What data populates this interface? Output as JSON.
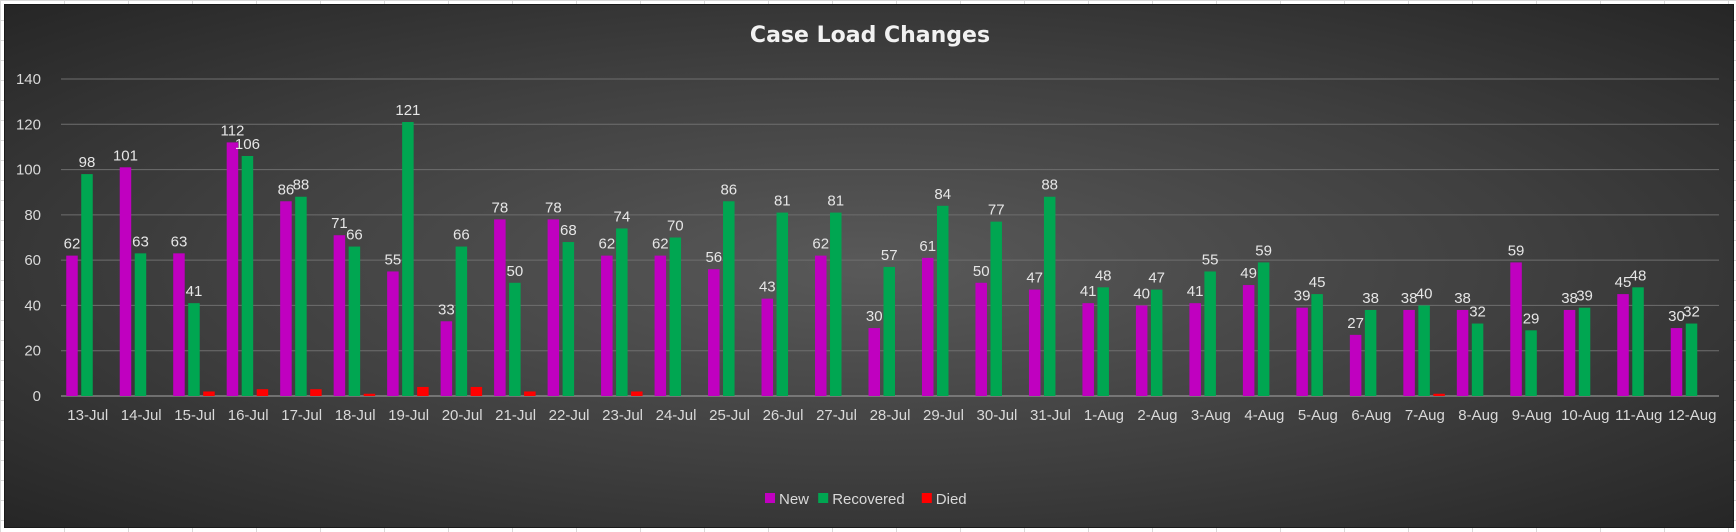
{
  "chart_data": {
    "type": "bar",
    "title": "Case Load Changes",
    "xlabel": "",
    "ylabel": "",
    "ylim": [
      0,
      140
    ],
    "yticks": [
      0,
      20,
      40,
      60,
      80,
      100,
      120,
      140
    ],
    "grid": true,
    "legend_position": "bottom",
    "categories": [
      "13-Jul",
      "14-Jul",
      "15-Jul",
      "16-Jul",
      "17-Jul",
      "18-Jul",
      "19-Jul",
      "20-Jul",
      "21-Jul",
      "22-Jul",
      "23-Jul",
      "24-Jul",
      "25-Jul",
      "26-Jul",
      "27-Jul",
      "28-Jul",
      "29-Jul",
      "30-Jul",
      "31-Jul",
      "1-Aug",
      "2-Aug",
      "3-Aug",
      "4-Aug",
      "5-Aug",
      "6-Aug",
      "7-Aug",
      "8-Aug",
      "9-Aug",
      "10-Aug",
      "11-Aug",
      "12-Aug"
    ],
    "series": [
      {
        "name": "New",
        "color": "#c000c0",
        "labels": true,
        "values": [
          62,
          101,
          63,
          112,
          86,
          71,
          55,
          33,
          78,
          78,
          62,
          62,
          56,
          43,
          62,
          30,
          61,
          50,
          47,
          41,
          40,
          41,
          49,
          39,
          27,
          38,
          38,
          59,
          38,
          45,
          30
        ]
      },
      {
        "name": "Recovered",
        "color": "#00a651",
        "labels": true,
        "values": [
          98,
          63,
          41,
          106,
          88,
          66,
          121,
          66,
          50,
          68,
          74,
          70,
          86,
          81,
          81,
          57,
          84,
          77,
          88,
          48,
          47,
          55,
          59,
          45,
          38,
          40,
          32,
          29,
          39,
          48,
          32
        ]
      },
      {
        "name": "Died",
        "color": "#ff0000",
        "labels": false,
        "values": [
          0,
          0,
          2,
          3,
          3,
          1,
          4,
          4,
          2,
          0,
          2,
          0,
          0,
          0,
          0,
          0,
          0,
          0,
          0,
          0,
          0,
          0,
          0,
          0,
          0,
          1,
          0,
          0,
          0,
          0,
          0
        ]
      }
    ]
  }
}
